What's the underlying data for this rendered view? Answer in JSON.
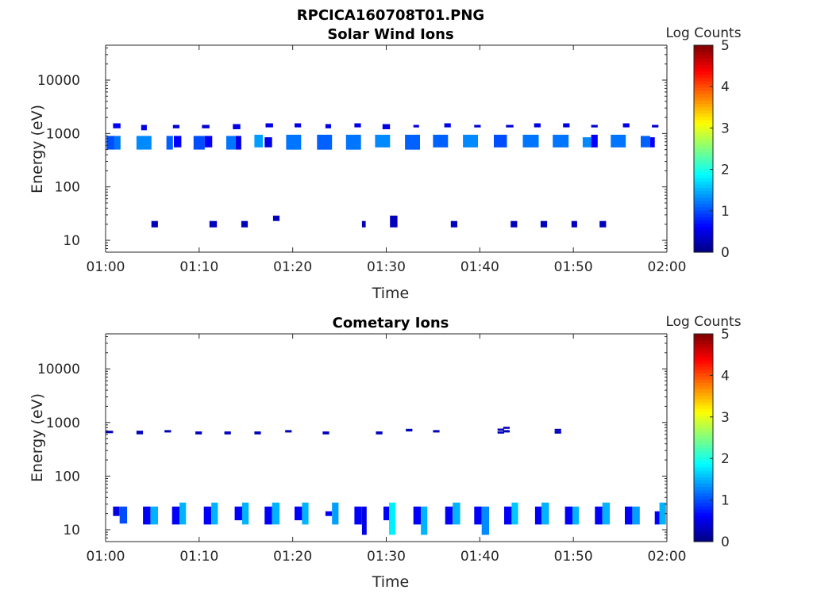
{
  "figure": {
    "filename_title": "RPCICA160708T01.PNG"
  },
  "chart_data": [
    {
      "type": "heatmap",
      "title": "Solar Wind Ions",
      "xlabel": "Time",
      "ylabel": "Energy (eV)",
      "xlim": [
        "01:00",
        "02:00"
      ],
      "xticks": [
        "01:00",
        "01:10",
        "01:20",
        "01:30",
        "01:40",
        "01:50",
        "02:00"
      ],
      "yscale": "log",
      "ylim": [
        6,
        45000
      ],
      "yticks": [
        "10",
        "100",
        "1000",
        "10000"
      ],
      "colorbar": {
        "label": "Log Counts",
        "range": [
          0,
          5
        ],
        "ticks": [
          "0",
          "1",
          "2",
          "3",
          "4",
          "5"
        ],
        "colormap": "jet"
      },
      "x_unit": "minutes after 01:00",
      "cells": [
        [
          0.1,
          1,
          500,
          900,
          1.0
        ],
        [
          0.9,
          1.6,
          500,
          900,
          1.2
        ],
        [
          0.8,
          1.6,
          1250,
          1550,
          0.6
        ],
        [
          3.3,
          4.9,
          500,
          900,
          1.3
        ],
        [
          3.8,
          4.4,
          1150,
          1450,
          0.5
        ],
        [
          6.5,
          7.2,
          500,
          900,
          1.1
        ],
        [
          7.3,
          8.1,
          550,
          900,
          0.6
        ],
        [
          7.2,
          7.9,
          1250,
          1450,
          0.4
        ],
        [
          9.4,
          10.6,
          500,
          900,
          1.0
        ],
        [
          10.6,
          11.4,
          550,
          900,
          0.6
        ],
        [
          10.3,
          11.1,
          1250,
          1450,
          0.4
        ],
        [
          12.9,
          13.9,
          500,
          900,
          1.2
        ],
        [
          13.9,
          14.5,
          500,
          900,
          0.5
        ],
        [
          13.6,
          14.4,
          1200,
          1500,
          0.5
        ],
        [
          15.9,
          16.8,
          550,
          950,
          1.4
        ],
        [
          17.0,
          17.8,
          550,
          850,
          0.5
        ],
        [
          17.1,
          17.9,
          1300,
          1550,
          0.5
        ],
        [
          19.3,
          20.9,
          500,
          950,
          1.2
        ],
        [
          20.2,
          20.9,
          1300,
          1550,
          0.5
        ],
        [
          22.6,
          24.2,
          500,
          950,
          1.1
        ],
        [
          23.5,
          24.1,
          1250,
          1500,
          0.5
        ],
        [
          25.7,
          27.3,
          500,
          950,
          1.2
        ],
        [
          26.6,
          27.3,
          1300,
          1550,
          0.5
        ],
        [
          28.8,
          30.4,
          550,
          950,
          1.3
        ],
        [
          29.6,
          30.4,
          1200,
          1500,
          0.5
        ],
        [
          32.0,
          33.6,
          500,
          950,
          1.1
        ],
        [
          32.9,
          33.5,
          1300,
          1450,
          0.4
        ],
        [
          35.0,
          36.6,
          550,
          950,
          1.1
        ],
        [
          36.2,
          36.9,
          1300,
          1550,
          0.5
        ],
        [
          38.2,
          39.8,
          550,
          950,
          1.3
        ],
        [
          39.4,
          40.1,
          1300,
          1450,
          0.4
        ],
        [
          41.5,
          42.9,
          550,
          950,
          1.0
        ],
        [
          42.8,
          43.6,
          1300,
          1450,
          0.4
        ],
        [
          44.6,
          46.3,
          550,
          950,
          1.2
        ],
        [
          45.8,
          46.5,
          1300,
          1550,
          0.5
        ],
        [
          47.8,
          49.5,
          550,
          950,
          1.2
        ],
        [
          48.9,
          49.6,
          1300,
          1550,
          0.5
        ],
        [
          51.0,
          51.9,
          550,
          850,
          1.3
        ],
        [
          51.9,
          52.6,
          550,
          950,
          0.6
        ],
        [
          51.9,
          52.6,
          1300,
          1450,
          0.4
        ],
        [
          54.0,
          55.6,
          550,
          950,
          1.2
        ],
        [
          55.3,
          56.0,
          1300,
          1550,
          0.5
        ],
        [
          57.2,
          58.2,
          550,
          900,
          1.1
        ],
        [
          58.2,
          58.7,
          550,
          850,
          0.6
        ],
        [
          58.4,
          59.1,
          1300,
          1450,
          0.4
        ],
        [
          4.9,
          5.6,
          17.5,
          23,
          0.3
        ],
        [
          11.1,
          11.9,
          17.5,
          23,
          0.3
        ],
        [
          14.5,
          15.2,
          17.5,
          23,
          0.3
        ],
        [
          17.9,
          18.6,
          23,
          29,
          0.3
        ],
        [
          27.4,
          27.8,
          17.5,
          23,
          0.3
        ],
        [
          30.4,
          31.2,
          17.5,
          29,
          0.3
        ],
        [
          36.9,
          37.6,
          17.5,
          23,
          0.3
        ],
        [
          43.3,
          44.0,
          17.5,
          23,
          0.3
        ],
        [
          46.5,
          47.2,
          17.5,
          23,
          0.3
        ],
        [
          49.8,
          50.4,
          17.5,
          23,
          0.3
        ],
        [
          52.8,
          53.5,
          17.5,
          23,
          0.3
        ]
      ]
    },
    {
      "type": "heatmap",
      "title": "Cometary Ions",
      "xlabel": "Time",
      "ylabel": "Energy (eV)",
      "xlim": [
        "01:00",
        "02:00"
      ],
      "xticks": [
        "01:00",
        "01:10",
        "01:20",
        "01:30",
        "01:40",
        "01:50",
        "02:00"
      ],
      "yscale": "log",
      "ylim": [
        6,
        45000
      ],
      "yticks": [
        "10",
        "100",
        "1000",
        "10000"
      ],
      "colorbar": {
        "label": "Log Counts",
        "range": [
          0,
          5
        ],
        "ticks": [
          "0",
          "1",
          "2",
          "3",
          "4",
          "5"
        ],
        "colormap": "jet"
      },
      "x_unit": "minutes after 01:00",
      "cells": [
        [
          0.0,
          0.8,
          630,
          700,
          0.3
        ],
        [
          3.3,
          4.0,
          600,
          700,
          0.3
        ],
        [
          6.3,
          7.0,
          650,
          720,
          0.3
        ],
        [
          9.6,
          10.3,
          600,
          680,
          0.3
        ],
        [
          12.7,
          13.4,
          600,
          680,
          0.3
        ],
        [
          15.9,
          16.6,
          600,
          680,
          0.3
        ],
        [
          19.2,
          19.9,
          650,
          720,
          0.3
        ],
        [
          23.2,
          23.9,
          600,
          680,
          0.3
        ],
        [
          28.9,
          29.6,
          600,
          680,
          0.3
        ],
        [
          32.1,
          32.8,
          680,
          760,
          0.3
        ],
        [
          35.0,
          35.7,
          650,
          720,
          0.3
        ],
        [
          41.9,
          42.6,
          620,
          680,
          0.3
        ],
        [
          41.9,
          42.6,
          700,
          770,
          0.3
        ],
        [
          42.5,
          43.2,
          650,
          720,
          0.3
        ],
        [
          42.5,
          43.2,
          760,
          830,
          0.3
        ],
        [
          48.0,
          48.7,
          620,
          690,
          0.3
        ],
        [
          48.0,
          48.7,
          690,
          760,
          0.3
        ],
        [
          0.8,
          1.5,
          18,
          27,
          0.5
        ],
        [
          1.5,
          2.3,
          13,
          27,
          1.0
        ],
        [
          4.0,
          4.8,
          12.5,
          27,
          0.6
        ],
        [
          4.8,
          5.6,
          12.5,
          27,
          1.5
        ],
        [
          7.1,
          7.9,
          12.5,
          27,
          0.6
        ],
        [
          7.9,
          8.6,
          12.5,
          32,
          1.5
        ],
        [
          10.5,
          11.3,
          12.5,
          27,
          0.6
        ],
        [
          11.3,
          12.0,
          12.5,
          32,
          1.5
        ],
        [
          13.8,
          14.6,
          15,
          27,
          0.6
        ],
        [
          14.6,
          15.3,
          12.5,
          32,
          1.5
        ],
        [
          17.0,
          17.8,
          12.5,
          27,
          0.6
        ],
        [
          17.8,
          18.6,
          12.5,
          32,
          1.5
        ],
        [
          20.2,
          21.0,
          15,
          27,
          0.6
        ],
        [
          21.0,
          21.7,
          12.5,
          32,
          1.5
        ],
        [
          23.5,
          24.2,
          18,
          22,
          0.6
        ],
        [
          24.2,
          24.9,
          12.5,
          32,
          1.4
        ],
        [
          26.6,
          27.4,
          12.5,
          27,
          0.6
        ],
        [
          27.4,
          27.9,
          8,
          27,
          0.5
        ],
        [
          29.7,
          30.3,
          15,
          27,
          0.6
        ],
        [
          30.3,
          31.0,
          8,
          32,
          1.8
        ],
        [
          32.9,
          33.7,
          12.5,
          27,
          0.6
        ],
        [
          33.7,
          34.4,
          8,
          27,
          1.5
        ],
        [
          36.3,
          37.1,
          12.5,
          27,
          0.6
        ],
        [
          37.1,
          37.9,
          12.5,
          32,
          1.5
        ],
        [
          39.4,
          40.2,
          12.5,
          27,
          0.6
        ],
        [
          40.2,
          41.0,
          8,
          27,
          1.3
        ],
        [
          42.6,
          43.4,
          12.5,
          27,
          0.6
        ],
        [
          43.4,
          44.1,
          12.5,
          32,
          1.6
        ],
        [
          45.9,
          46.6,
          12.5,
          27,
          0.6
        ],
        [
          46.6,
          47.4,
          12.5,
          32,
          1.5
        ],
        [
          49.1,
          49.9,
          12.5,
          27,
          0.6
        ],
        [
          49.9,
          50.6,
          12.5,
          27,
          1.5
        ],
        [
          52.3,
          53.1,
          12.5,
          27,
          0.6
        ],
        [
          53.1,
          53.9,
          12.5,
          32,
          1.5
        ],
        [
          55.5,
          56.3,
          12.5,
          27,
          0.6
        ],
        [
          56.3,
          57.1,
          12.5,
          27,
          1.4
        ],
        [
          58.7,
          59.2,
          12.5,
          22,
          0.6
        ],
        [
          59.2,
          59.9,
          12.5,
          32,
          1.5
        ]
      ]
    }
  ]
}
